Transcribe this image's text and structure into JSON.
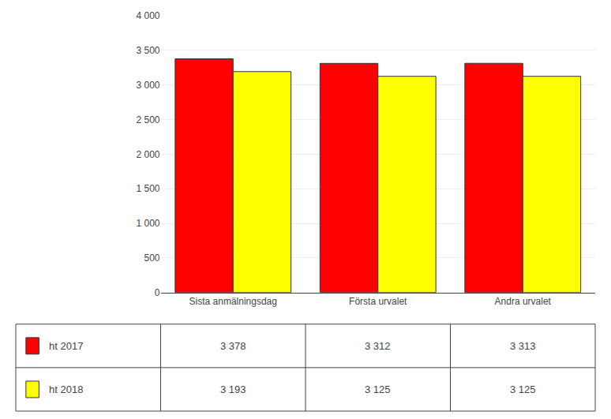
{
  "chart_data": {
    "type": "bar",
    "categories": [
      "Sista anmälningsdag",
      "Första urvalet",
      "Andra urvalet"
    ],
    "series": [
      {
        "name": "ht 2017",
        "color": "#FF0000",
        "values": [
          3378,
          3312,
          3313
        ],
        "value_labels": [
          "3 378",
          "3 312",
          "3 313"
        ]
      },
      {
        "name": "ht 2018",
        "color": "#FFFF00",
        "values": [
          3193,
          3125,
          3125
        ],
        "value_labels": [
          "3 193",
          "3 125",
          "3 125"
        ]
      }
    ],
    "ylim": [
      0,
      4000
    ],
    "yticks": [
      0,
      500,
      {
        "value": 1000,
        "label": "1 000"
      },
      {
        "value": 1500,
        "label": "1 500"
      },
      {
        "value": 2000,
        "label": "2 000"
      },
      {
        "value": 2500,
        "label": "2 500"
      },
      {
        "value": 3000,
        "label": "3 000"
      },
      {
        "value": 3500,
        "label": "3 500"
      },
      {
        "value": 4000,
        "label": "4 000"
      }
    ],
    "grid": true
  }
}
